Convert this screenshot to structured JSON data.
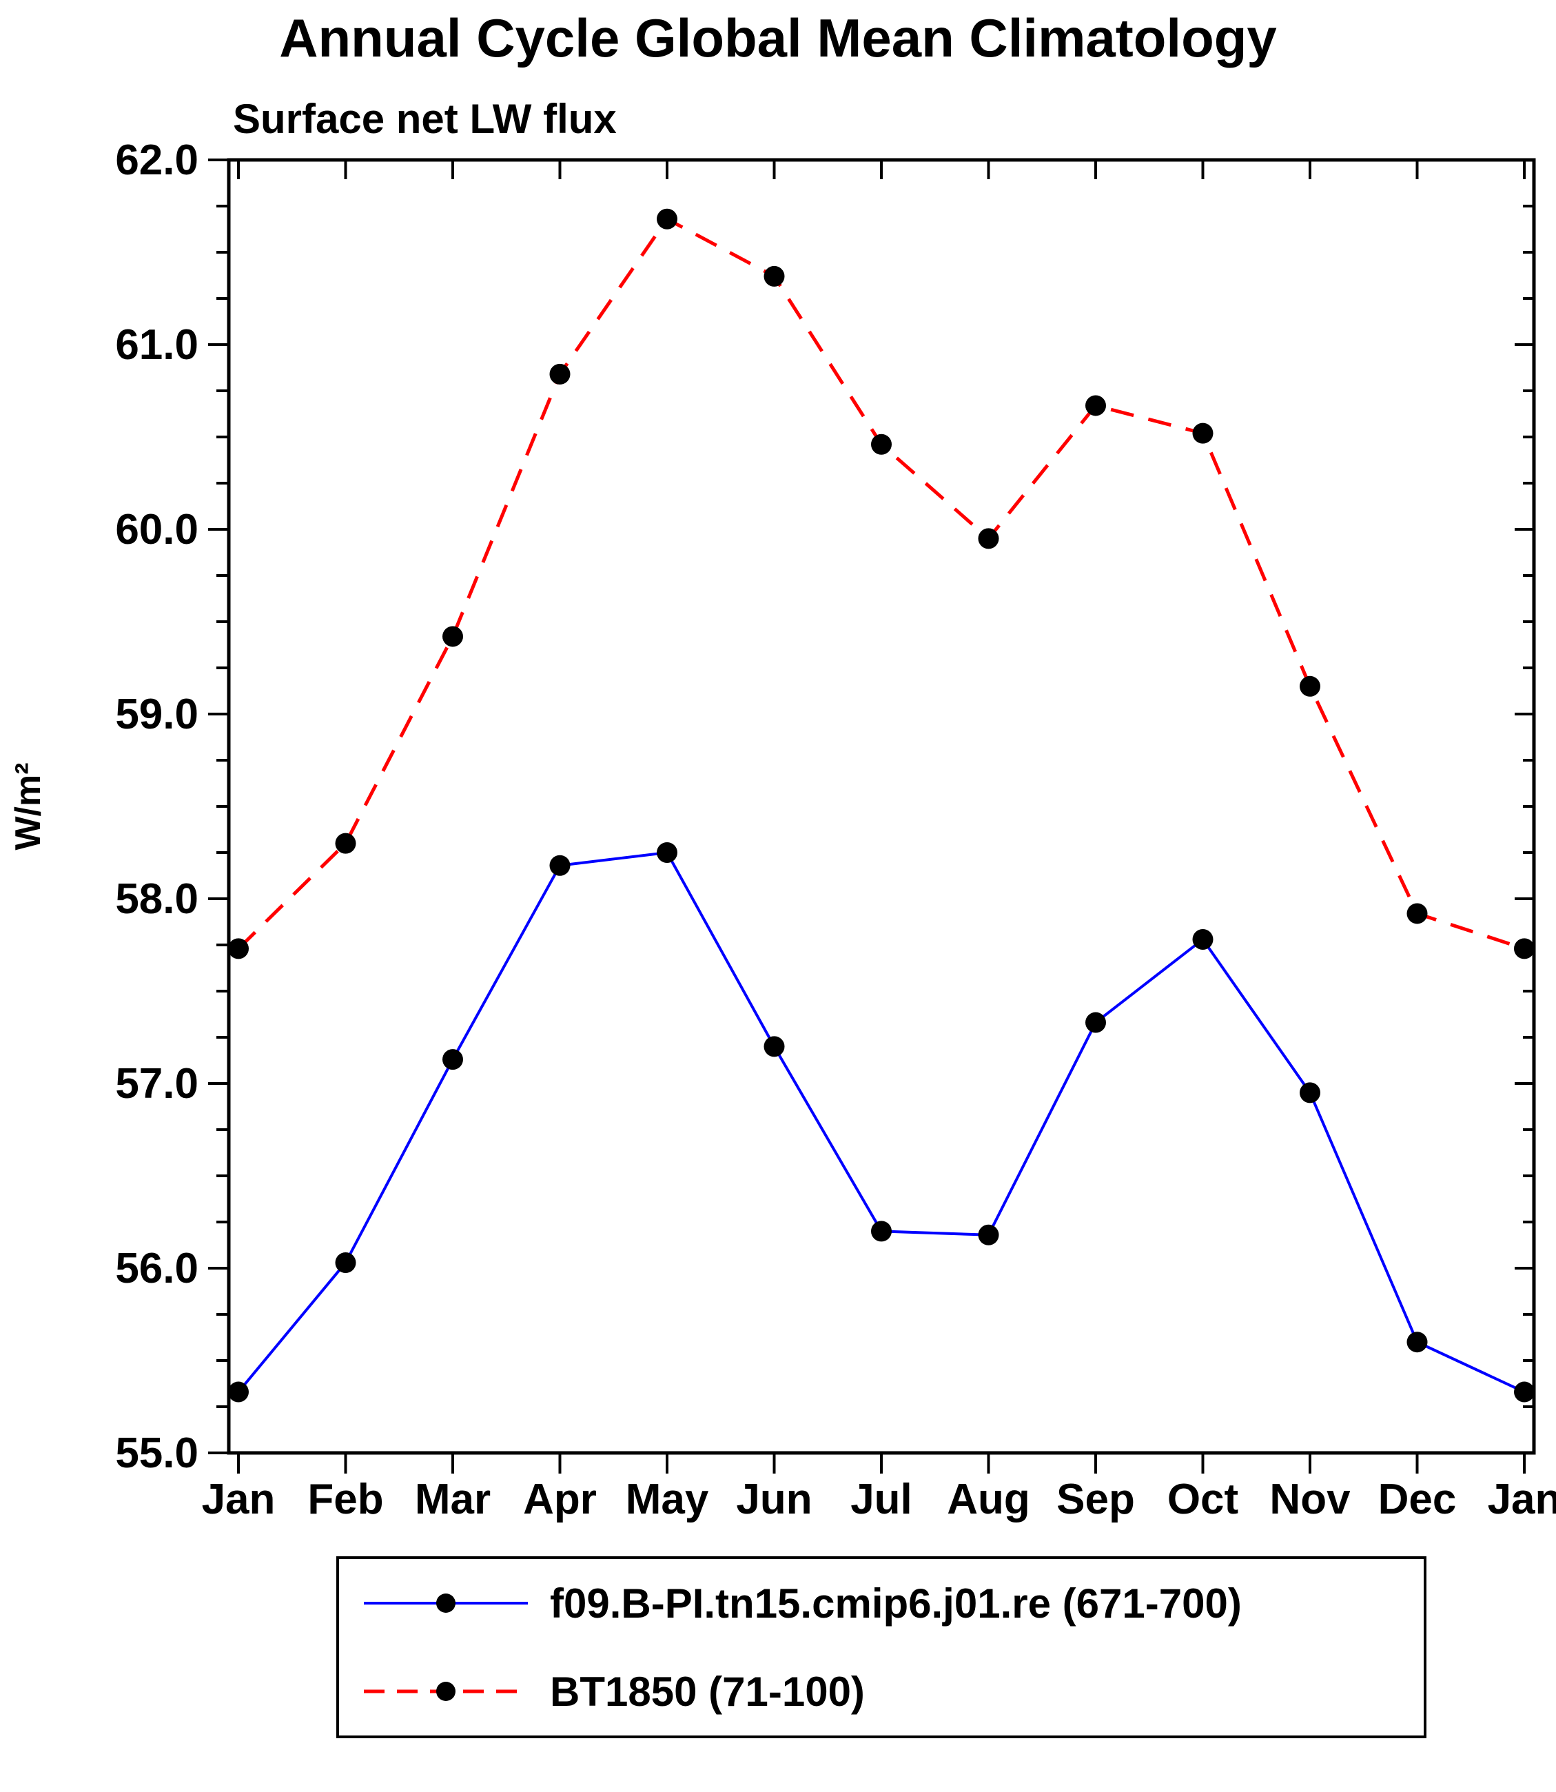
{
  "title": "Annual Cycle Global Mean Climatology",
  "subtitle": "Surface net LW flux",
  "colors": {
    "frame": "#000000",
    "background": "#ffffff",
    "text": "#000000",
    "series_blue": "#0000ff",
    "series_red": "#ff0000",
    "marker": "#000000"
  },
  "chart_data": {
    "type": "line",
    "title": "Annual Cycle Global Mean Climatology",
    "subtitle": "Surface net LW flux",
    "xlabel": "",
    "ylabel": "W/m²",
    "x_categories": [
      "Jan",
      "Feb",
      "Mar",
      "Apr",
      "May",
      "Jun",
      "Jul",
      "Aug",
      "Sep",
      "Oct",
      "Nov",
      "Dec",
      "Jan"
    ],
    "ylim": [
      55.0,
      62.0
    ],
    "y_major_step": 1.0,
    "y_minor_step": 0.25,
    "y_tick_labels": [
      "55.0",
      "56.0",
      "57.0",
      "58.0",
      "59.0",
      "60.0",
      "61.0",
      "62.0"
    ],
    "grid": false,
    "legend_position": "bottom",
    "series": [
      {
        "name": "f09.B-PI.tn15.cmip6.j01.re (671-700)",
        "color": "#0000ff",
        "style": "solid",
        "marker": "circle",
        "marker_color": "#000000",
        "values": [
          55.33,
          56.03,
          57.13,
          58.18,
          58.25,
          57.2,
          56.2,
          56.18,
          57.33,
          57.78,
          56.95,
          55.6,
          55.33
        ]
      },
      {
        "name": "BT1850 (71-100)",
        "color": "#ff0000",
        "style": "dashed",
        "marker": "circle",
        "marker_color": "#000000",
        "values": [
          57.73,
          58.3,
          59.42,
          60.84,
          61.68,
          61.37,
          60.46,
          59.95,
          60.67,
          60.52,
          59.15,
          57.92,
          57.73
        ]
      }
    ]
  }
}
